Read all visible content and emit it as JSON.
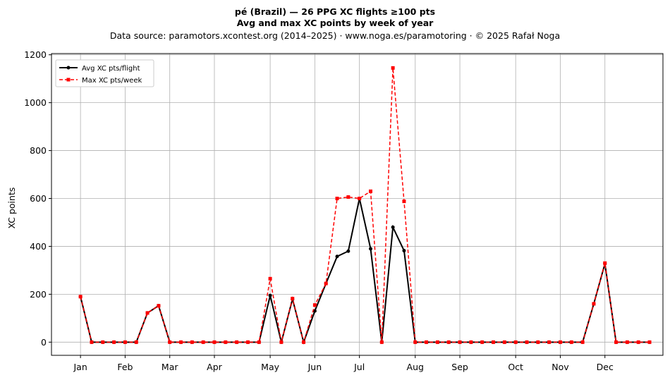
{
  "chart_data": {
    "type": "line",
    "title_line1": "pé (Brazil)  —  26 PPG XC flights ≥100 pts",
    "title_line2": "Avg and max XC points by week of year",
    "subtitle": "Data source: paramotors.xcontest.org (2014–2025)  ·  www.noga.es/paramotoring  ·  © 2025 Rafał Noga",
    "ylabel": "XC points",
    "xlabel": "",
    "ylim": [
      -55,
      1205
    ],
    "xlim": [
      -1.6,
      53.2
    ],
    "yticks": [
      0,
      200,
      400,
      600,
      800,
      1000,
      1200
    ],
    "xticks": [
      {
        "label": "Jan",
        "week": 1
      },
      {
        "label": "Feb",
        "week": 5
      },
      {
        "label": "Mar",
        "week": 9
      },
      {
        "label": "Apr",
        "week": 13
      },
      {
        "label": "May",
        "week": 18
      },
      {
        "label": "Jun",
        "week": 22
      },
      {
        "label": "Jul",
        "week": 26
      },
      {
        "label": "Aug",
        "week": 31
      },
      {
        "label": "Sep",
        "week": 35
      },
      {
        "label": "Oct",
        "week": 40
      },
      {
        "label": "Nov",
        "week": 44
      },
      {
        "label": "Dec",
        "week": 48
      }
    ],
    "grid": true,
    "legend_position": "top-left",
    "x": [
      1,
      2,
      3,
      4,
      5,
      6,
      7,
      8,
      9,
      10,
      11,
      12,
      13,
      14,
      15,
      16,
      17,
      18,
      19,
      20,
      21,
      22,
      23,
      24,
      25,
      26,
      27,
      28,
      29,
      30,
      31,
      32,
      33,
      34,
      35,
      36,
      37,
      38,
      39,
      40,
      41,
      42,
      43,
      44,
      45,
      46,
      47,
      48,
      49,
      50,
      51,
      52
    ],
    "series": [
      {
        "name": "Avg XC pts/flight",
        "color": "#000000",
        "style": "solid",
        "marker": "circle",
        "values": [
          190,
          0,
          0,
          0,
          0,
          0,
          122,
          152,
          0,
          0,
          0,
          0,
          0,
          0,
          0,
          0,
          0,
          195,
          0,
          180,
          0,
          130,
          245,
          358,
          380,
          600,
          390,
          0,
          480,
          382,
          0,
          0,
          0,
          0,
          0,
          0,
          0,
          0,
          0,
          0,
          0,
          0,
          0,
          0,
          0,
          0,
          160,
          328,
          0,
          0,
          0,
          0
        ]
      },
      {
        "name": "Max XC pts/week",
        "color": "#ff0000",
        "style": "dashed",
        "marker": "square",
        "values": [
          190,
          0,
          0,
          0,
          0,
          0,
          122,
          152,
          0,
          0,
          0,
          0,
          0,
          0,
          0,
          0,
          0,
          265,
          0,
          182,
          0,
          155,
          245,
          600,
          606,
          600,
          630,
          0,
          1145,
          588,
          0,
          0,
          0,
          0,
          0,
          0,
          0,
          0,
          0,
          0,
          0,
          0,
          0,
          0,
          0,
          0,
          160,
          330,
          0,
          0,
          0,
          0
        ]
      }
    ]
  }
}
